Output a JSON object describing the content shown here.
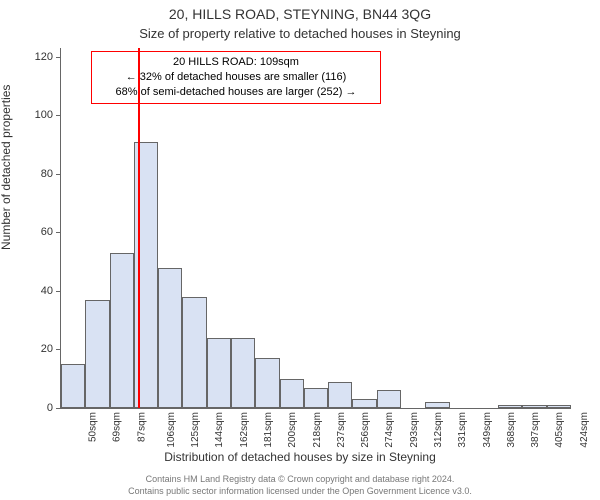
{
  "titles": {
    "line1": "20, HILLS ROAD, STEYNING, BN44 3QG",
    "line2": "Size of property relative to detached houses in Steyning"
  },
  "axes": {
    "ylabel": "Number of detached properties",
    "xlabel": "Distribution of detached houses by size in Steyning",
    "ylim": [
      0,
      123
    ],
    "yticks": [
      0,
      20,
      40,
      60,
      80,
      100,
      120
    ]
  },
  "chart": {
    "type": "histogram",
    "bar_fill": "#d9e2f3",
    "bar_stroke": "#666666",
    "background_color": "#ffffff",
    "bin_width_sqm": 18.7,
    "bins": [
      {
        "label": "50sqm",
        "start": 50,
        "count": 15
      },
      {
        "label": "69sqm",
        "start": 68.7,
        "count": 37
      },
      {
        "label": "87sqm",
        "start": 87.4,
        "count": 53
      },
      {
        "label": "106sqm",
        "start": 106.1,
        "count": 91
      },
      {
        "label": "125sqm",
        "start": 124.8,
        "count": 48
      },
      {
        "label": "144sqm",
        "start": 143.5,
        "count": 38
      },
      {
        "label": "162sqm",
        "start": 162.2,
        "count": 24
      },
      {
        "label": "181sqm",
        "start": 180.9,
        "count": 24
      },
      {
        "label": "200sqm",
        "start": 199.6,
        "count": 17
      },
      {
        "label": "218sqm",
        "start": 218.3,
        "count": 10
      },
      {
        "label": "237sqm",
        "start": 237.0,
        "count": 7
      },
      {
        "label": "256sqm",
        "start": 255.7,
        "count": 9
      },
      {
        "label": "274sqm",
        "start": 274.4,
        "count": 3
      },
      {
        "label": "293sqm",
        "start": 293.1,
        "count": 6
      },
      {
        "label": "312sqm",
        "start": 311.8,
        "count": 0
      },
      {
        "label": "331sqm",
        "start": 330.5,
        "count": 2
      },
      {
        "label": "349sqm",
        "start": 349.2,
        "count": 0
      },
      {
        "label": "368sqm",
        "start": 367.9,
        "count": 0
      },
      {
        "label": "387sqm",
        "start": 386.6,
        "count": 1
      },
      {
        "label": "405sqm",
        "start": 405.3,
        "count": 1
      },
      {
        "label": "424sqm",
        "start": 424.0,
        "count": 1
      }
    ],
    "marker": {
      "value_sqm": 109,
      "color": "#ff0000"
    }
  },
  "info_box": {
    "border_color": "#ff0000",
    "line1": "20 HILLS ROAD: 109sqm",
    "line2": "← 32% of detached houses are smaller (116)",
    "line3": "68% of semi-detached houses are larger (252) →"
  },
  "footer": {
    "line1": "Contains HM Land Registry data © Crown copyright and database right 2024.",
    "line2": "Contains public sector information licensed under the Open Government Licence v3.0."
  }
}
